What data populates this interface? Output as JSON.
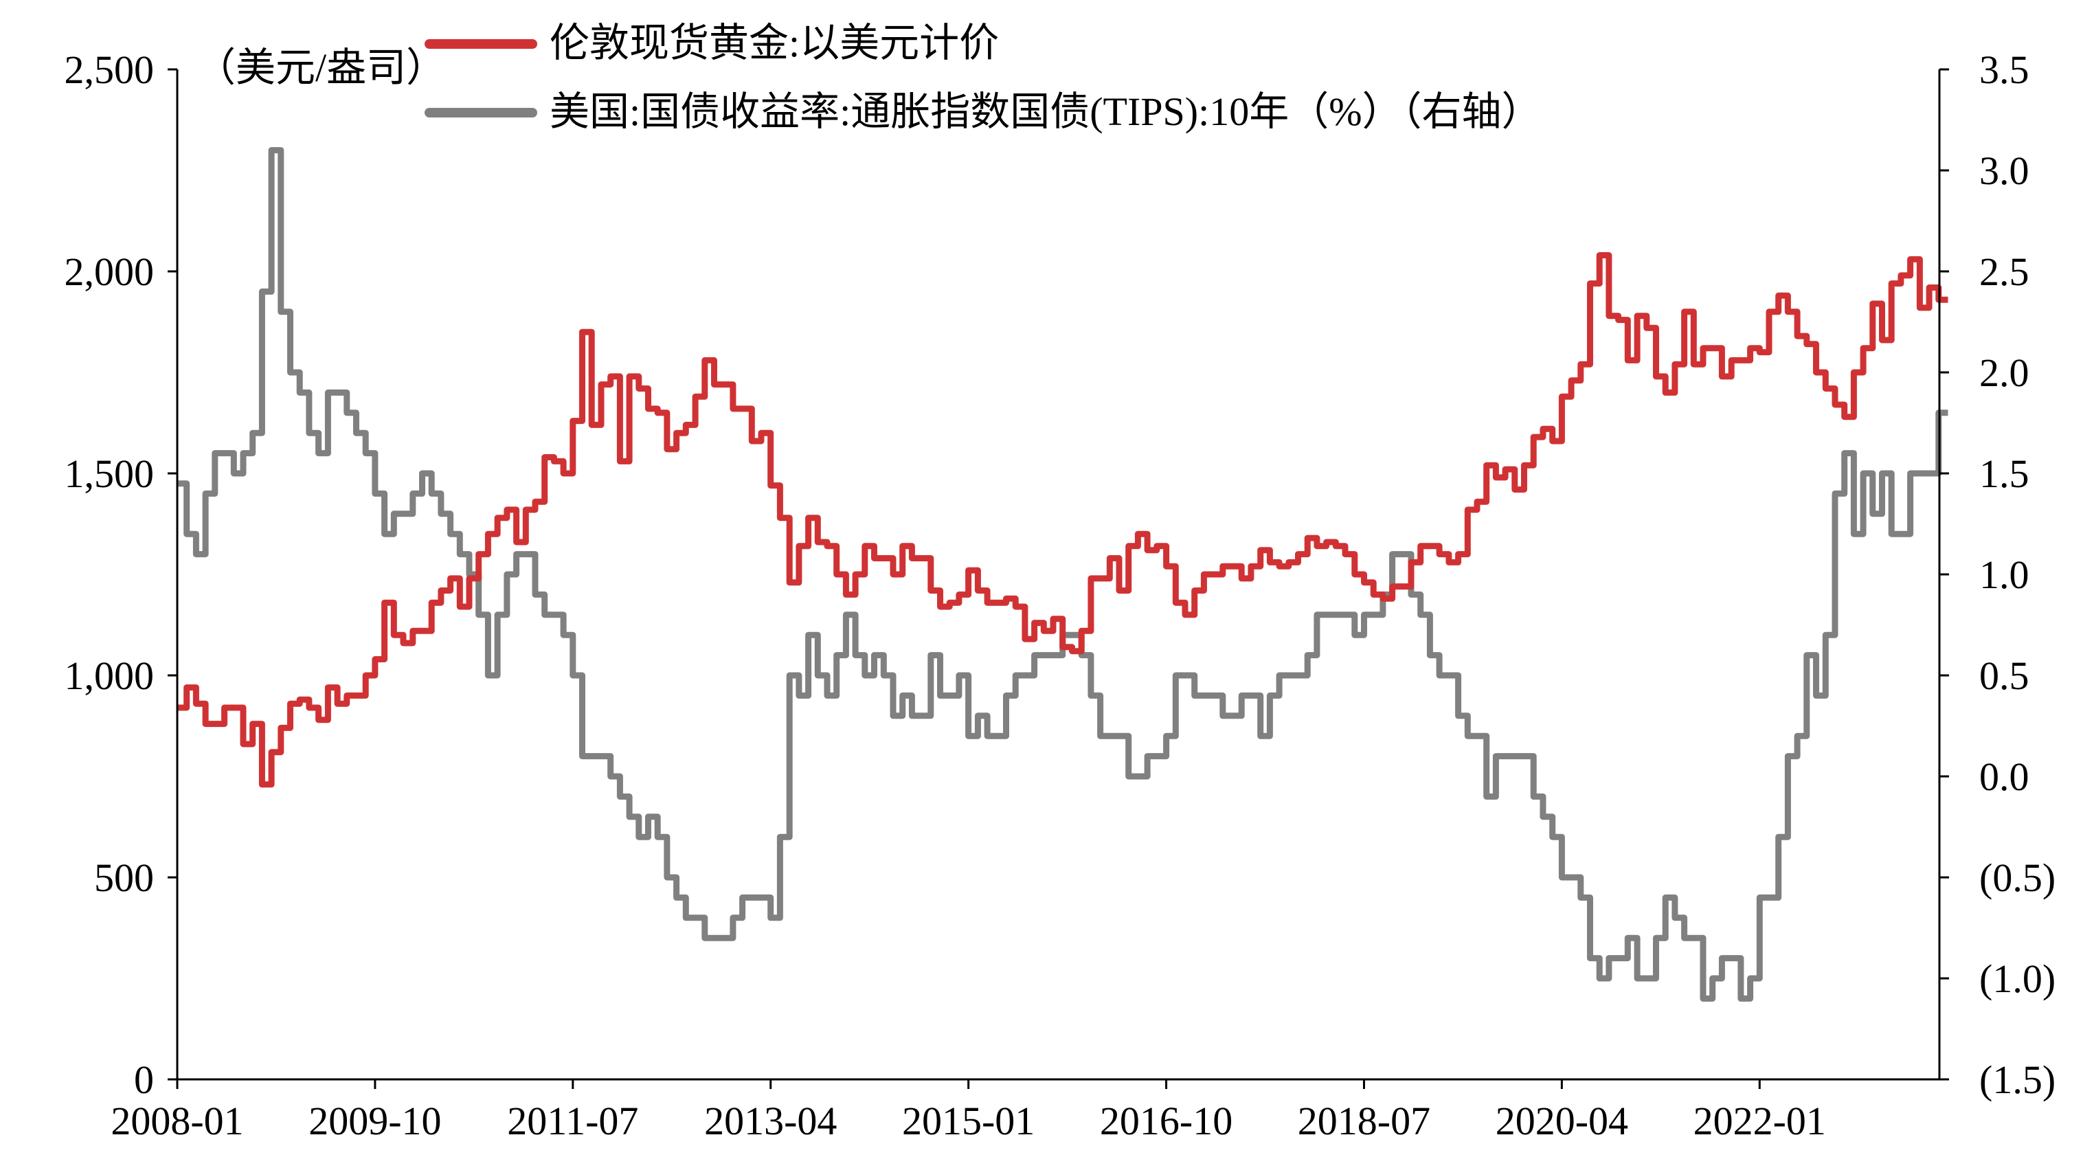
{
  "chart_data": {
    "type": "line",
    "title": "",
    "xlabel": "",
    "ylabel": "（美元/盎司）",
    "ylabel_right": "",
    "x_start": "2008-01",
    "x_tick_labels": [
      "2008-01",
      "2009-10",
      "2011-07",
      "2013-04",
      "2015-01",
      "2016-10",
      "2018-07",
      "2020-04",
      "2022-01"
    ],
    "ylim_left": [
      0,
      2500
    ],
    "y_ticks_left": [
      "0",
      "500",
      "1,000",
      "1,500",
      "2,000",
      "2,500"
    ],
    "ylim_right": [
      -1.5,
      3.5
    ],
    "y_ticks_right": [
      "(1.5)",
      "(1.0)",
      "(0.5)",
      "0.0",
      "0.5",
      "1.0",
      "1.5",
      "2.0",
      "2.5",
      "3.0",
      "3.5"
    ],
    "negative_tick_color": "#ff0000",
    "grid": false,
    "legend_placement": "top-center",
    "series": [
      {
        "name": "伦敦现货黄金:以美元计价",
        "axis": "left",
        "color": "#d03234",
        "frequency": "monthly",
        "values": [
          920,
          970,
          930,
          880,
          880,
          920,
          920,
          830,
          880,
          730,
          810,
          870,
          930,
          940,
          920,
          890,
          970,
          930,
          950,
          950,
          1000,
          1040,
          1180,
          1100,
          1080,
          1110,
          1110,
          1180,
          1210,
          1240,
          1170,
          1240,
          1300,
          1350,
          1390,
          1410,
          1330,
          1410,
          1430,
          1540,
          1530,
          1500,
          1630,
          1850,
          1620,
          1720,
          1740,
          1530,
          1740,
          1710,
          1660,
          1650,
          1560,
          1600,
          1620,
          1690,
          1780,
          1720,
          1720,
          1660,
          1660,
          1580,
          1600,
          1470,
          1390,
          1230,
          1320,
          1390,
          1330,
          1320,
          1250,
          1200,
          1250,
          1320,
          1290,
          1290,
          1250,
          1320,
          1290,
          1290,
          1210,
          1170,
          1180,
          1200,
          1260,
          1210,
          1180,
          1180,
          1190,
          1170,
          1090,
          1130,
          1110,
          1140,
          1070,
          1060,
          1110,
          1240,
          1240,
          1290,
          1210,
          1320,
          1350,
          1310,
          1320,
          1270,
          1180,
          1150,
          1210,
          1250,
          1250,
          1270,
          1270,
          1240,
          1270,
          1310,
          1280,
          1270,
          1280,
          1300,
          1340,
          1320,
          1330,
          1320,
          1300,
          1250,
          1230,
          1200,
          1190,
          1220,
          1220,
          1280,
          1320,
          1320,
          1300,
          1280,
          1300,
          1410,
          1430,
          1520,
          1490,
          1510,
          1460,
          1520,
          1590,
          1610,
          1580,
          1690,
          1730,
          1770,
          1970,
          2040,
          1890,
          1880,
          1780,
          1890,
          1860,
          1740,
          1700,
          1770,
          1900,
          1770,
          1810,
          1810,
          1740,
          1780,
          1780,
          1810,
          1800,
          1900,
          1940,
          1900,
          1840,
          1820,
          1750,
          1710,
          1670,
          1640,
          1750,
          1810,
          1920,
          1830,
          1970,
          1990,
          2030,
          1910,
          1960,
          1930
        ]
      },
      {
        "name": "美国:国债收益率:通胀指数国债(TIPS):10年（%）（右轴）",
        "axis": "right",
        "color": "#808080",
        "frequency": "monthly",
        "values": [
          1.45,
          1.2,
          1.1,
          1.4,
          1.6,
          1.6,
          1.5,
          1.6,
          1.7,
          2.4,
          3.1,
          2.3,
          2.0,
          1.9,
          1.7,
          1.6,
          1.9,
          1.9,
          1.8,
          1.7,
          1.6,
          1.4,
          1.2,
          1.3,
          1.3,
          1.4,
          1.5,
          1.4,
          1.3,
          1.2,
          1.1,
          1.0,
          0.8,
          0.5,
          0.8,
          1.0,
          1.1,
          1.1,
          0.9,
          0.8,
          0.8,
          0.7,
          0.5,
          0.1,
          0.1,
          0.1,
          0.0,
          -0.1,
          -0.2,
          -0.3,
          -0.2,
          -0.3,
          -0.5,
          -0.6,
          -0.7,
          -0.7,
          -0.8,
          -0.8,
          -0.8,
          -0.7,
          -0.6,
          -0.6,
          -0.6,
          -0.7,
          -0.3,
          0.5,
          0.4,
          0.7,
          0.5,
          0.4,
          0.6,
          0.8,
          0.6,
          0.5,
          0.6,
          0.5,
          0.3,
          0.4,
          0.3,
          0.3,
          0.6,
          0.4,
          0.4,
          0.5,
          0.2,
          0.3,
          0.2,
          0.2,
          0.4,
          0.5,
          0.5,
          0.6,
          0.6,
          0.6,
          0.7,
          0.7,
          0.6,
          0.4,
          0.2,
          0.2,
          0.2,
          0.0,
          0.0,
          0.1,
          0.1,
          0.2,
          0.5,
          0.5,
          0.4,
          0.4,
          0.4,
          0.3,
          0.3,
          0.4,
          0.4,
          0.2,
          0.4,
          0.5,
          0.5,
          0.5,
          0.6,
          0.8,
          0.8,
          0.8,
          0.8,
          0.7,
          0.8,
          0.8,
          0.9,
          1.1,
          1.1,
          0.9,
          0.8,
          0.6,
          0.5,
          0.5,
          0.3,
          0.2,
          0.2,
          -0.1,
          0.1,
          0.1,
          0.1,
          0.1,
          -0.1,
          -0.2,
          -0.3,
          -0.5,
          -0.5,
          -0.6,
          -0.9,
          -1.0,
          -0.9,
          -0.9,
          -0.8,
          -1.0,
          -1.0,
          -0.8,
          -0.6,
          -0.7,
          -0.8,
          -0.8,
          -1.1,
          -1.0,
          -0.9,
          -0.9,
          -1.1,
          -1.0,
          -0.6,
          -0.6,
          -0.3,
          0.1,
          0.2,
          0.6,
          0.4,
          0.7,
          1.4,
          1.6,
          1.2,
          1.5,
          1.3,
          1.5,
          1.2,
          1.2,
          1.5,
          1.5,
          1.5,
          1.8
        ]
      }
    ]
  }
}
